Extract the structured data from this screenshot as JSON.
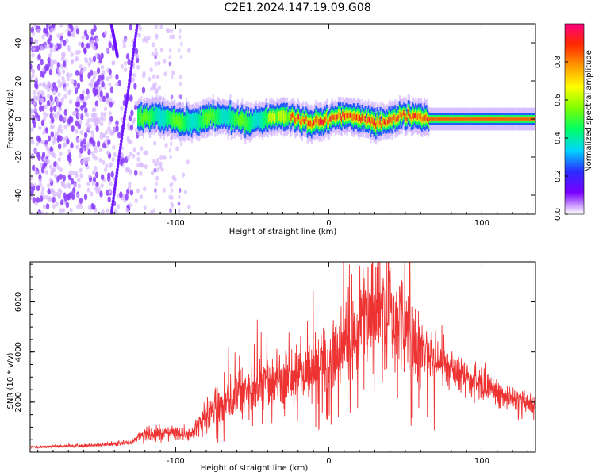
{
  "title": "C2E1.2024.147.19.09.G08",
  "chart_data": [
    {
      "type": "heatmap",
      "xlabel": "Height of straight line (km)",
      "ylabel": "Frequency (Hz)",
      "xlim": [
        -195,
        135
      ],
      "ylim": [
        -50,
        50
      ],
      "xticks": [
        -100,
        0,
        100
      ],
      "yticks": [
        -40,
        -20,
        0,
        20,
        40
      ],
      "grid": false,
      "colorbar": {
        "label": "Normalized spectral amplitude",
        "range": [
          0,
          1
        ],
        "ticks": [
          "0.0",
          "0.2",
          "0.4",
          "0.6",
          "0.8"
        ],
        "colormap": [
          "#ffffff",
          "#7a00ff",
          "#2b2bff",
          "#00d5ff",
          "#00ff66",
          "#7dff00",
          "#ffff00",
          "#ff9900",
          "#ff2a00",
          "#ff007f"
        ]
      },
      "features": [
        {
          "kind": "noise",
          "x_range": [
            -195,
            -90
          ],
          "freq_range": [
            -50,
            50
          ]
        },
        {
          "kind": "streak",
          "x1": -142,
          "f1": -50,
          "x2": -125,
          "f2": 50
        },
        {
          "kind": "streak",
          "x1": -142,
          "f1": 50,
          "x2": -138,
          "f2": 33
        },
        {
          "kind": "ridge",
          "x_range": [
            -125,
            135
          ],
          "center_freq": 0,
          "peak_x": [
            -25,
            65
          ]
        }
      ]
    },
    {
      "type": "line",
      "xlabel": "Height of straight line (km)",
      "ylabel": "SNR (10 * v/v)",
      "xlim": [
        -195,
        135
      ],
      "ylim": [
        0,
        7600
      ],
      "xticks": [
        -100,
        0,
        100
      ],
      "yticks": [
        2000,
        4000,
        6000
      ],
      "color": "#ee3333",
      "envelope": {
        "x": [
          -195,
          -150,
          -130,
          -120,
          -100,
          -90,
          -80,
          -60,
          -40,
          -20,
          0,
          10,
          20,
          30,
          35,
          40,
          50,
          60,
          80,
          100,
          120,
          135
        ],
        "y": [
          200,
          280,
          380,
          700,
          800,
          650,
          1500,
          2200,
          2700,
          3000,
          3600,
          4300,
          5000,
          5900,
          6000,
          5600,
          4900,
          4300,
          3300,
          2700,
          2100,
          1900
        ]
      }
    }
  ]
}
